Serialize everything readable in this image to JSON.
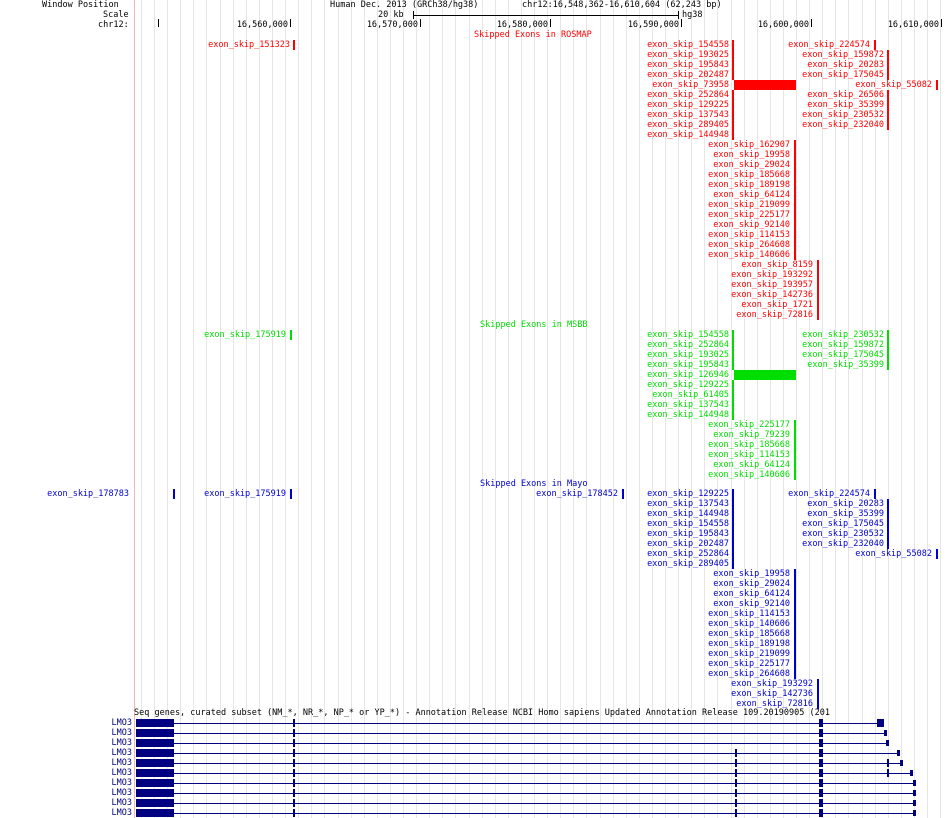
{
  "header": {
    "window_position_label": "Window Position",
    "scale_label": "Scale",
    "chrom_label": "chr12:",
    "assembly": "Human Dec. 2013 (GRCh38/hg38)",
    "position": "chr12:16,548,362-16,610,604 (62,243 bp)",
    "scale_value": "20 kb",
    "scale_assembly": "hg38",
    "ticks": [
      "16,560,000",
      "16,570,000",
      "16,580,000",
      "16,590,000",
      "16,600,000",
      "16,610,000"
    ]
  },
  "tracks": {
    "rosmap": {
      "title": "Skipped Exons in ROSMAP",
      "color": "#ff0000",
      "items": [
        "exon_skip_151323",
        "exon_skip_154558",
        "exon_skip_193025",
        "exon_skip_195843",
        "exon_skip_202487",
        "exon_skip_73958",
        "exon_skip_252864",
        "exon_skip_129225",
        "exon_skip_137543",
        "exon_skip_289405",
        "exon_skip_144948",
        "exon_skip_224574",
        "exon_skip_159872",
        "exon_skip_20283",
        "exon_skip_175045",
        "exon_skip_55082",
        "exon_skip_26506",
        "exon_skip_35399",
        "exon_skip_230532",
        "exon_skip_232040",
        "exon_skip_162907",
        "exon_skip_19958",
        "exon_skip_29024",
        "exon_skip_185668",
        "exon_skip_189198",
        "exon_skip_64124",
        "exon_skip_219099",
        "exon_skip_225177",
        "exon_skip_92140",
        "exon_skip_114153",
        "exon_skip_264608",
        "exon_skip_140606",
        "exon_skip_8159",
        "exon_skip_193292",
        "exon_skip_193957",
        "exon_skip_142736",
        "exon_skip_1721",
        "exon_skip_72816"
      ]
    },
    "msbb": {
      "title": "Skipped Exons in MSBB",
      "color": "#00dd00",
      "items": [
        "exon_skip_175919",
        "exon_skip_154558",
        "exon_skip_252864",
        "exon_skip_193025",
        "exon_skip_195843",
        "exon_skip_126946",
        "exon_skip_129225",
        "exon_skip_61405",
        "exon_skip_137543",
        "exon_skip_144948",
        "exon_skip_230532",
        "exon_skip_159872",
        "exon_skip_175045",
        "exon_skip_35399",
        "exon_skip_225177",
        "exon_skip_79239",
        "exon_skip_185668",
        "exon_skip_114153",
        "exon_skip_64124",
        "exon_skip_140606"
      ]
    },
    "mayo": {
      "title": "Skipped Exons in Mayo",
      "color": "#0000cc",
      "items": [
        "exon_skip_178783",
        "exon_skip_175919",
        "exon_skip_178452",
        "exon_skip_129225",
        "exon_skip_137543",
        "exon_skip_144948",
        "exon_skip_154558",
        "exon_skip_195843",
        "exon_skip_202487",
        "exon_skip_252864",
        "exon_skip_289405",
        "exon_skip_224574",
        "exon_skip_20283",
        "exon_skip_35399",
        "exon_skip_175045",
        "exon_skip_230532",
        "exon_skip_232040",
        "exon_skip_55082",
        "exon_skip_19958",
        "exon_skip_29024",
        "exon_skip_64124",
        "exon_skip_92140",
        "exon_skip_114153",
        "exon_skip_140606",
        "exon_skip_185668",
        "exon_skip_189198",
        "exon_skip_219099",
        "exon_skip_225177",
        "exon_skip_264608",
        "exon_skip_193292",
        "exon_skip_142736",
        "exon_skip_72816"
      ]
    },
    "refseq": {
      "title": "Seq genes, curated subset (NM_*, NR_*, NP_* or YP_*) - Annotation Release NCBI Homo sapiens Updated Annotation Release 109.20190905 (201",
      "color": "#000080",
      "genes": [
        "LMO3",
        "LMO3",
        "LMO3",
        "LMO3",
        "LMO3",
        "LMO3",
        "LMO3",
        "LMO3",
        "LMO3",
        "LMO3"
      ]
    }
  }
}
